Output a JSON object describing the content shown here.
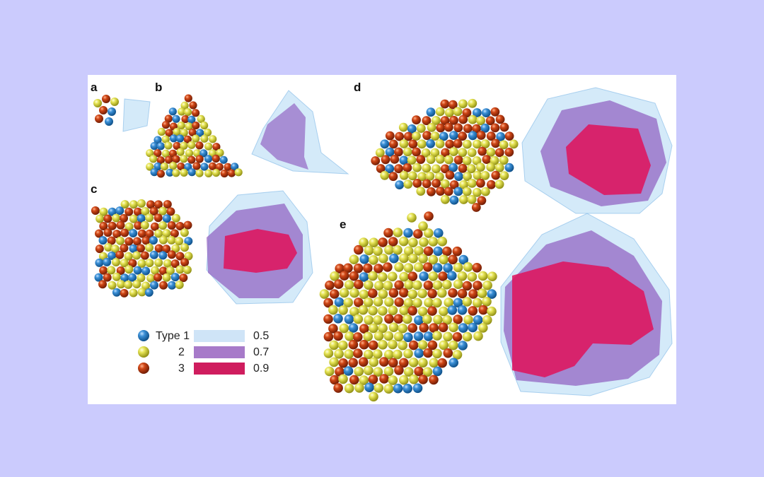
{
  "figure": {
    "panel_labels": [
      "a",
      "b",
      "c",
      "d",
      "e"
    ]
  },
  "legend": {
    "atoms": [
      {
        "label": "Type 1",
        "color": "#1f74b8"
      },
      {
        "label": "2",
        "color": "#e0e04a"
      },
      {
        "label": "3",
        "color": "#c2390f"
      }
    ],
    "surfaces": [
      {
        "label": "0.5",
        "color": "#cfe4f7"
      },
      {
        "label": "0.7",
        "color": "#a77ac9"
      },
      {
        "label": "0.9",
        "color": "#cf1d5e"
      }
    ]
  },
  "colors": {
    "background": "#cbcbfd",
    "panel": "#ffffff",
    "surface_05": "#9fd0f2",
    "surface_07": "#8f5cc0",
    "surface_09": "#e0125a"
  }
}
